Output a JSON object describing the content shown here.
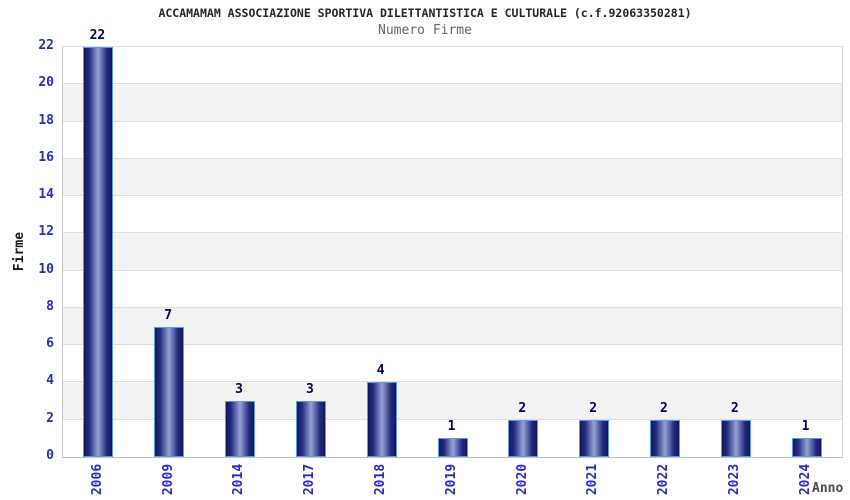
{
  "chart_data": {
    "type": "bar",
    "title": "ACCAMAMAM ASSOCIAZIONE SPORTIVA DILETTANTISTICA E CULTURALE (c.f.92063350281)",
    "subtitle": "Numero Firme",
    "xlabel": "Anno",
    "ylabel": "Firme",
    "categories": [
      "2006",
      "2009",
      "2014",
      "2017",
      "2018",
      "2019",
      "2020",
      "2021",
      "2022",
      "2023",
      "2024"
    ],
    "values": [
      22,
      7,
      3,
      3,
      4,
      1,
      2,
      2,
      2,
      2,
      1
    ],
    "ylim": [
      0,
      22
    ],
    "ytick_step": 2,
    "grid": true,
    "legend": false,
    "band_stripes": true,
    "colors": {
      "bar_dark": "#15155e",
      "bar_light": "#97a3d4",
      "bar_border": "#5c9ce6",
      "tick_label": "#2a2ac8",
      "value_label": "#000066",
      "stripe_band": "#f2f2f2",
      "gridline": "#dedede",
      "title_text": "#262626",
      "subtitle_text": "#666666"
    }
  }
}
